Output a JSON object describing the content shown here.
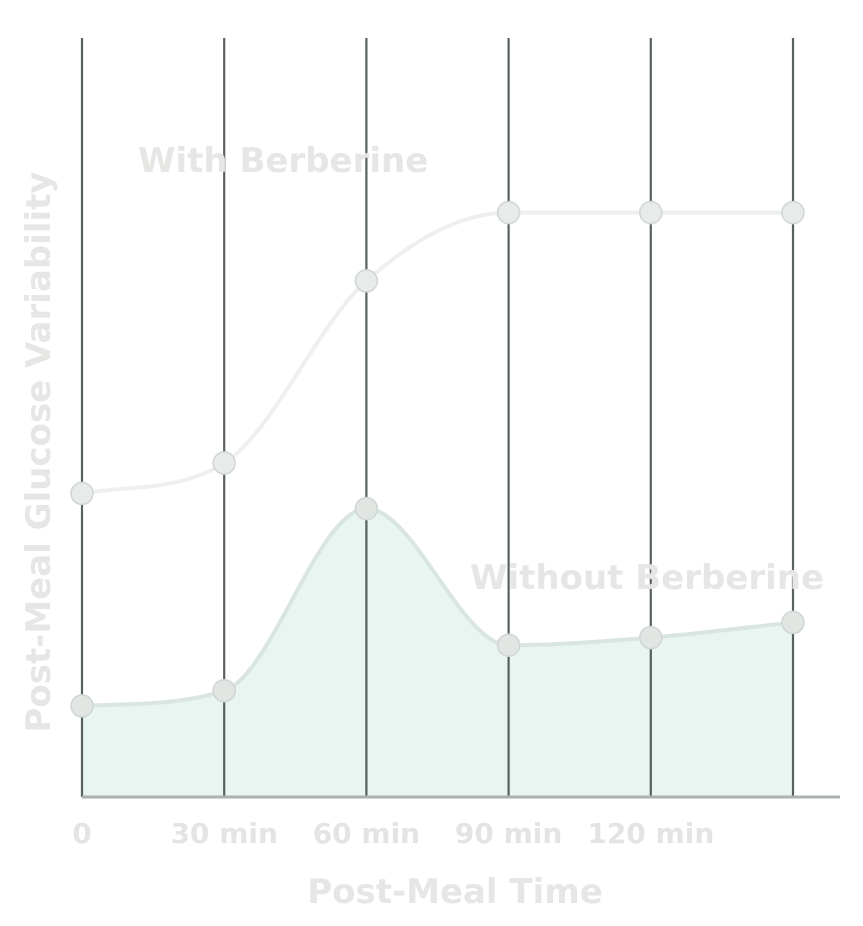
{
  "chart_data": {
    "type": "line",
    "title": "",
    "xlabel": "Post-Meal Time",
    "ylabel": "Post-Meal Glucose Variability",
    "x": [
      0,
      30,
      60,
      90,
      120,
      150
    ],
    "x_tick_labels": [
      "0",
      "30 min",
      "60 min",
      "90 min",
      "120 min"
    ],
    "ylim": [
      0,
      100
    ],
    "grid": "vertical",
    "series": [
      {
        "name": "With Berberine",
        "values": [
          40,
          44,
          68,
          77,
          77,
          77
        ],
        "fill": false
      },
      {
        "name": "Without Berberine",
        "values": [
          12,
          14,
          38,
          20,
          21,
          23
        ],
        "fill": true
      }
    ],
    "colors": {
      "grid": "#3c4744",
      "axis": "#aab3b0",
      "with_line": "#eef0ee",
      "with_marker": "#e8ebe9",
      "without_line": "#d9e5e0",
      "without_fill": "#e9f5f1",
      "without_marker": "#e1e6e3",
      "text": "#e5e5e3"
    }
  }
}
